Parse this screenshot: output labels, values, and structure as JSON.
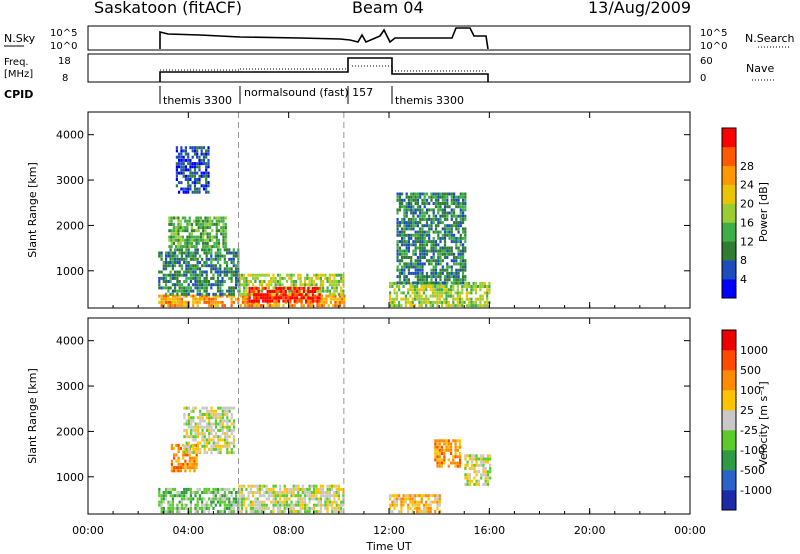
{
  "header": {
    "title": "Saskatoon (fitACF)",
    "beam": "Beam 04",
    "date": "13/Aug/2009"
  },
  "strip": {
    "nsky_label": "N.Sky",
    "nsky_ticks": [
      "10^5",
      "10^0"
    ],
    "nsearch_label": "N.Search",
    "nsearch_ticks": [
      "10^5",
      "10^0"
    ],
    "freq_label_1": "Freq.",
    "freq_label_2": "[MHz]",
    "freq_ticks": [
      "18",
      "8"
    ],
    "nave_label": "Nave",
    "nave_ticks": [
      "60",
      "0"
    ],
    "cpid_label": "CPID",
    "cpid_segments": [
      {
        "start": 2.75,
        "end": 6.0,
        "label": "themis 3300"
      },
      {
        "start": 6.0,
        "end": 10.2,
        "label": "normalsound (fast) 157"
      },
      {
        "start": 12.0,
        "end": 16.0,
        "label": "themis 3300"
      }
    ]
  },
  "xaxis": {
    "label": "Time UT",
    "ticks": [
      "00:00",
      "04:00",
      "08:00",
      "12:00",
      "16:00",
      "20:00",
      "00:00"
    ],
    "tick_hours": [
      0,
      4,
      8,
      12,
      16,
      20,
      24
    ]
  },
  "power_panel": {
    "ylabel": "Slant Range [km]",
    "yticks": [
      "1000",
      "2000",
      "3000",
      "4000"
    ],
    "cbar_label": "Power [dB]",
    "cbar_ticks": [
      "4",
      "8",
      "12",
      "16",
      "20",
      "24",
      "28"
    ],
    "colors": [
      "#0000ff",
      "#1c4cbe",
      "#2e7d32",
      "#3fae49",
      "#9acd32",
      "#e9c400",
      "#ff9800",
      "#ff5a00",
      "#ff0000"
    ]
  },
  "velocity_panel": {
    "ylabel": "Slant Range [km]",
    "yticks": [
      "1000",
      "2000",
      "3000",
      "4000"
    ],
    "cbar_label": "Velocity [m s⁻¹]",
    "cbar_ticks": [
      "1000",
      "500",
      "100",
      "25",
      "-25",
      "-100",
      "-500",
      "-1000"
    ],
    "colors": [
      "#1a2aa8",
      "#2a64c8",
      "#2e9a44",
      "#5acb2a",
      "#c8c8c8",
      "#ffc400",
      "#ff8a00",
      "#ff4a00",
      "#ee0000"
    ]
  },
  "chart_data": {
    "type": "heatmap",
    "x_range_hours": [
      0,
      24
    ],
    "y_range_km": [
      180,
      4500
    ],
    "time_gaps": [
      [
        10.2,
        11.9
      ]
    ],
    "dashed_lines_hours": [
      6.0,
      10.2
    ],
    "power_regions": [
      {
        "t0": 2.8,
        "t1": 10.2,
        "r0": 200,
        "r1": 450,
        "level": 6
      },
      {
        "t0": 6.0,
        "t1": 10.2,
        "r0": 450,
        "r1": 900,
        "level": 4
      },
      {
        "t0": 6.4,
        "t1": 9.2,
        "r0": 300,
        "r1": 650,
        "level": 8
      },
      {
        "t0": 2.8,
        "t1": 6.0,
        "r0": 450,
        "r1": 1500,
        "level": 2
      },
      {
        "t0": 3.2,
        "t1": 5.5,
        "r0": 1500,
        "r1": 2200,
        "level": 3
      },
      {
        "t0": 3.5,
        "t1": 4.8,
        "r0": 2700,
        "r1": 3700,
        "level": 1
      },
      {
        "t0": 12.0,
        "t1": 16.0,
        "r0": 200,
        "r1": 700,
        "level": 4
      },
      {
        "t0": 12.3,
        "t1": 15.0,
        "r0": 700,
        "r1": 2700,
        "level": 2
      }
    ],
    "velocity_regions": [
      {
        "t0": 2.8,
        "t1": 6.0,
        "r0": 200,
        "r1": 700,
        "level": 3
      },
      {
        "t0": 6.0,
        "t1": 10.2,
        "r0": 200,
        "r1": 800,
        "level": 4
      },
      {
        "t0": 3.3,
        "t1": 4.3,
        "r0": 1100,
        "r1": 1700,
        "level": 6
      },
      {
        "t0": 3.8,
        "t1": 5.8,
        "r0": 1500,
        "r1": 2500,
        "level": 4
      },
      {
        "t0": 12.0,
        "t1": 14.0,
        "r0": 200,
        "r1": 600,
        "level": 5
      },
      {
        "t0": 13.8,
        "t1": 14.8,
        "r0": 1200,
        "r1": 1800,
        "level": 6
      },
      {
        "t0": 15.0,
        "t1": 16.0,
        "r0": 800,
        "r1": 1500,
        "level": 4
      }
    ]
  }
}
